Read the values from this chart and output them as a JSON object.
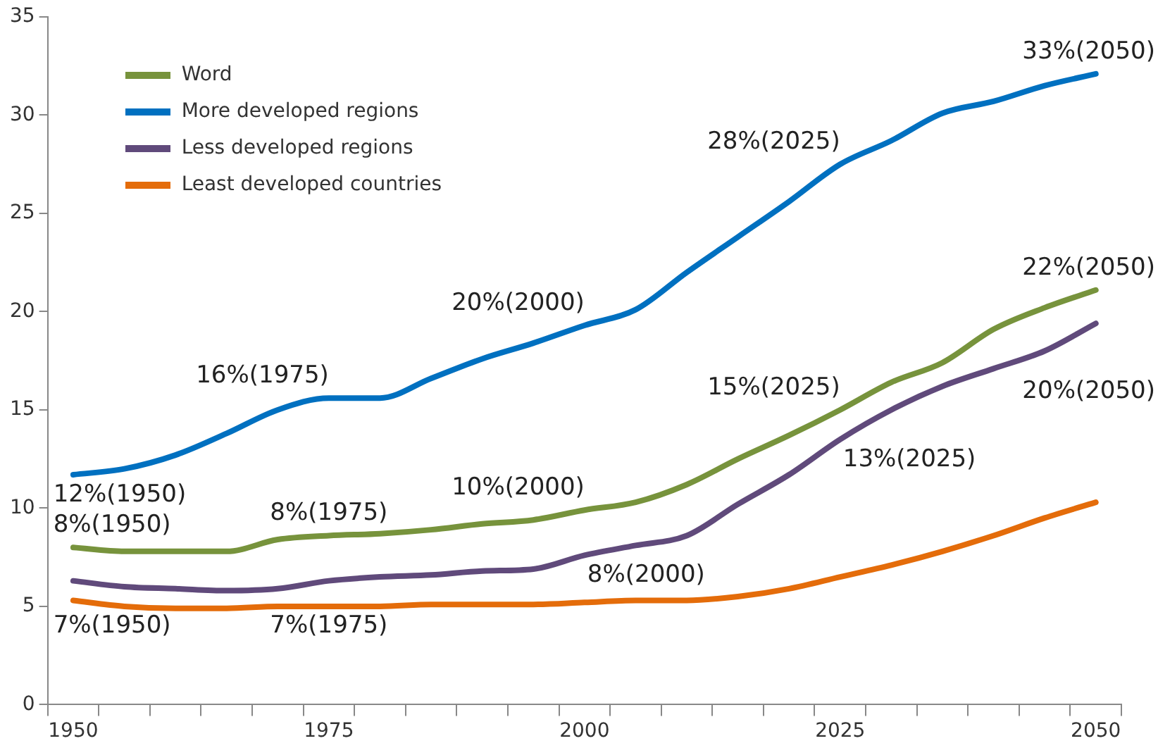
{
  "chart_data": {
    "type": "line",
    "categories": [
      "1950",
      null,
      null,
      null,
      null,
      "1975",
      null,
      null,
      null,
      null,
      "2000",
      null,
      null,
      null,
      null,
      "2025",
      null,
      null,
      null,
      null,
      "2050"
    ],
    "series": [
      {
        "name": "Word",
        "color": "#77933c",
        "values": [
          8.0,
          7.8,
          7.8,
          7.8,
          8.4,
          8.6,
          8.7,
          8.9,
          9.2,
          9.4,
          9.9,
          10.3,
          11.2,
          12.5,
          13.7,
          15.0,
          16.4,
          17.4,
          19.1,
          20.2,
          21.1
        ]
      },
      {
        "name": "More developed regions",
        "color": "#0070c0",
        "values": [
          11.7,
          12.0,
          12.7,
          13.8,
          15.0,
          15.6,
          15.6,
          16.6,
          17.6,
          18.4,
          19.3,
          20.1,
          22.0,
          23.8,
          25.6,
          27.5,
          28.7,
          30.1,
          30.7,
          31.5,
          32.1
        ]
      },
      {
        "name": "Less developed regions",
        "color": "#604a7b",
        "values": [
          6.3,
          6.0,
          5.9,
          5.8,
          5.9,
          6.3,
          6.5,
          6.6,
          6.8,
          6.9,
          7.6,
          8.1,
          8.6,
          10.2,
          11.7,
          13.5,
          15.0,
          16.2,
          17.1,
          18.0,
          19.4
        ]
      },
      {
        "name": "Least developed countries",
        "color": "#e46c0a",
        "values": [
          5.3,
          5.0,
          4.9,
          4.9,
          5.0,
          5.0,
          5.0,
          5.1,
          5.1,
          5.1,
          5.2,
          5.3,
          5.3,
          5.5,
          5.9,
          6.5,
          7.1,
          7.8,
          8.6,
          9.5,
          10.3
        ]
      }
    ],
    "ylim": [
      0,
      35
    ],
    "yticks": [
      0,
      5,
      10,
      15,
      20,
      25,
      30,
      35
    ],
    "grid": false,
    "legend": "top left",
    "marker": "none",
    "line_style": "solid",
    "annotations": [
      {
        "text": "12%(1950)",
        "x": "1950",
        "y": 11.7
      },
      {
        "text": "16%(1975)",
        "x": "1975",
        "y": 15.6
      },
      {
        "text": "20%(2000)",
        "x": "2000",
        "y": 19.3
      },
      {
        "text": "28%(2025)",
        "x": "2025",
        "y": 27.5
      },
      {
        "text": "33%(2050)",
        "x": "2050",
        "y": 32.1
      },
      {
        "text": "8%(1950)",
        "x": "1950",
        "y": 8.0
      },
      {
        "text": "8%(1975)",
        "x": "1975",
        "y": 8.6
      },
      {
        "text": "10%(2000)",
        "x": "2000",
        "y": 9.9
      },
      {
        "text": "15%(2025)",
        "x": "2025",
        "y": 15.0
      },
      {
        "text": "22%(2050)",
        "x": "2050",
        "y": 21.1
      },
      {
        "text": "7%(1950)",
        "x": "1950",
        "y": 6.3
      },
      {
        "text": "7%(1975)",
        "x": "1975",
        "y": 6.3
      },
      {
        "text": "8%(2000)",
        "x": "2000",
        "y": 7.6
      },
      {
        "text": "13%(2025)",
        "x": "2025",
        "y": 13.5
      },
      {
        "text": "20%(2050)",
        "x": "2050",
        "y": 19.4
      }
    ]
  }
}
